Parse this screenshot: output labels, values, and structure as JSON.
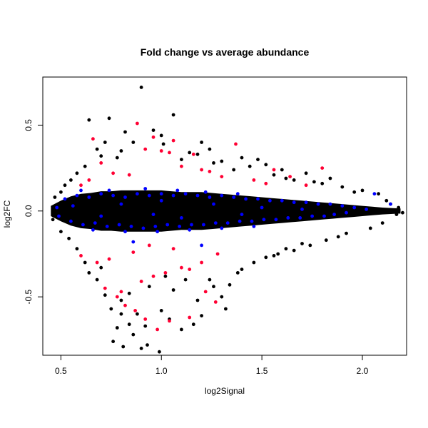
{
  "chart_data": {
    "type": "scatter",
    "title": "Fold change vs average abundance",
    "xlabel": "log2Signal",
    "ylabel": "log2FC",
    "xlim": [
      0.41,
      2.22
    ],
    "ylim": [
      -0.84,
      0.78
    ],
    "xticks": [
      0.5,
      1.0,
      1.5,
      2.0
    ],
    "xtick_labels": [
      "0.5",
      "1.0",
      "1.5",
      "2.0"
    ],
    "yticks": [
      -0.5,
      0.0,
      0.5
    ],
    "ytick_labels": [
      "-0.5",
      "0.0",
      "0.5"
    ],
    "grid": false,
    "legend": "none",
    "colors": {
      "background": "#000000",
      "black": "#000000",
      "blue": "#0000ff",
      "red": "#ff0033"
    },
    "bulk": [
      [
        0.45,
        0.03
      ],
      [
        0.5,
        0.06
      ],
      [
        0.55,
        0.085
      ],
      [
        0.6,
        0.1
      ],
      [
        0.65,
        0.105
      ],
      [
        0.7,
        0.115
      ],
      [
        0.75,
        0.115
      ],
      [
        0.8,
        0.12
      ],
      [
        0.85,
        0.12
      ],
      [
        0.9,
        0.12
      ],
      [
        0.95,
        0.12
      ],
      [
        1.0,
        0.12
      ],
      [
        1.05,
        0.115
      ],
      [
        1.1,
        0.11
      ],
      [
        1.15,
        0.11
      ],
      [
        1.2,
        0.11
      ],
      [
        1.25,
        0.105
      ],
      [
        1.3,
        0.1
      ],
      [
        1.35,
        0.095
      ],
      [
        1.4,
        0.09
      ],
      [
        1.45,
        0.085
      ],
      [
        1.5,
        0.08
      ],
      [
        1.55,
        0.075
      ],
      [
        1.6,
        0.07
      ],
      [
        1.65,
        0.065
      ],
      [
        1.7,
        0.06
      ],
      [
        1.75,
        0.055
      ],
      [
        1.8,
        0.05
      ],
      [
        1.85,
        0.045
      ],
      [
        1.9,
        0.04
      ],
      [
        1.95,
        0.035
      ],
      [
        2.0,
        0.03
      ],
      [
        2.05,
        0.025
      ],
      [
        2.1,
        0.02
      ],
      [
        2.15,
        0.017
      ],
      [
        2.19,
        0.015
      ]
    ],
    "series": [
      {
        "color": "black",
        "points": [
          [
            0.9,
            0.72
          ],
          [
            0.74,
            0.54
          ],
          [
            1.06,
            0.56
          ],
          [
            0.64,
            0.53
          ],
          [
            0.82,
            0.46
          ],
          [
            0.96,
            0.47
          ],
          [
            0.86,
            0.4
          ],
          [
            1.01,
            0.39
          ],
          [
            1.24,
            0.36
          ],
          [
            1.18,
            0.33
          ],
          [
            1.4,
            0.31
          ],
          [
            1.52,
            0.27
          ],
          [
            1.6,
            0.24
          ],
          [
            1.72,
            0.22
          ],
          [
            1.44,
            0.26
          ],
          [
            1.3,
            0.29
          ],
          [
            0.68,
            0.36
          ],
          [
            0.72,
            0.4
          ],
          [
            0.58,
            0.22
          ],
          [
            0.62,
            0.26
          ],
          [
            0.78,
            0.31
          ],
          [
            1.1,
            0.3
          ],
          [
            1.36,
            0.24
          ],
          [
            1.56,
            0.21
          ],
          [
            1.66,
            0.18
          ],
          [
            1.8,
            0.16
          ],
          [
            1.9,
            0.14
          ],
          [
            2.0,
            0.12
          ],
          [
            2.08,
            0.1
          ],
          [
            0.52,
            0.15
          ],
          [
            0.5,
            0.11
          ],
          [
            0.47,
            0.08
          ],
          [
            0.55,
            0.18
          ],
          [
            1.84,
            0.19
          ],
          [
            1.48,
            0.3
          ],
          [
            1.2,
            0.4
          ],
          [
            1.0,
            0.44
          ],
          [
            0.7,
            0.32
          ],
          [
            0.8,
            0.35
          ],
          [
            1.14,
            0.34
          ],
          [
            1.26,
            0.28
          ],
          [
            1.62,
            0.19
          ],
          [
            1.76,
            0.17
          ],
          [
            1.96,
            0.11
          ],
          [
            2.12,
            0.06
          ],
          [
            2.18,
            0.02
          ],
          [
            2.17,
            -0.02
          ],
          [
            2.14,
            0.04
          ],
          [
            0.76,
            -0.76
          ],
          [
            0.81,
            -0.79
          ],
          [
            0.9,
            -0.8
          ],
          [
            0.93,
            -0.78
          ],
          [
            0.99,
            -0.82
          ],
          [
            0.86,
            -0.72
          ],
          [
            0.84,
            -0.66
          ],
          [
            0.78,
            -0.68
          ],
          [
            0.92,
            -0.67
          ],
          [
            0.88,
            -0.6
          ],
          [
            1.04,
            -0.63
          ],
          [
            1.1,
            -0.69
          ],
          [
            1.16,
            -0.66
          ],
          [
            1.2,
            -0.61
          ],
          [
            1.32,
            -0.57
          ],
          [
            1.3,
            -0.5
          ],
          [
            1.26,
            -0.44
          ],
          [
            1.34,
            -0.43
          ],
          [
            1.24,
            -0.4
          ],
          [
            1.0,
            -0.58
          ],
          [
            0.8,
            -0.6
          ],
          [
            0.75,
            -0.57
          ],
          [
            0.72,
            -0.49
          ],
          [
            0.8,
            -0.52
          ],
          [
            0.68,
            -0.4
          ],
          [
            0.64,
            -0.36
          ],
          [
            0.7,
            -0.33
          ],
          [
            1.46,
            -0.3
          ],
          [
            1.56,
            -0.26
          ],
          [
            1.62,
            -0.22
          ],
          [
            1.7,
            -0.19
          ],
          [
            1.82,
            -0.17
          ],
          [
            1.92,
            -0.13
          ],
          [
            2.04,
            -0.1
          ],
          [
            2.1,
            -0.07
          ],
          [
            0.58,
            -0.22
          ],
          [
            0.54,
            -0.16
          ],
          [
            0.5,
            -0.12
          ],
          [
            0.46,
            -0.05
          ],
          [
            1.06,
            -0.46
          ],
          [
            1.12,
            -0.4
          ],
          [
            1.02,
            -0.38
          ],
          [
            0.94,
            -0.44
          ],
          [
            1.38,
            -0.36
          ],
          [
            1.52,
            -0.27
          ],
          [
            1.74,
            -0.2
          ],
          [
            1.88,
            -0.15
          ],
          [
            2.2,
            -0.01
          ],
          [
            0.62,
            -0.3
          ],
          [
            0.84,
            -0.48
          ],
          [
            1.18,
            -0.52
          ],
          [
            1.4,
            -0.34
          ],
          [
            1.58,
            -0.25
          ],
          [
            1.66,
            -0.23
          ]
        ]
      },
      {
        "color": "blue",
        "points": [
          [
            0.52,
            0.07
          ],
          [
            0.58,
            0.09
          ],
          [
            0.64,
            0.08
          ],
          [
            0.7,
            0.1
          ],
          [
            0.76,
            0.09
          ],
          [
            0.82,
            0.08
          ],
          [
            0.88,
            0.1
          ],
          [
            0.94,
            0.09
          ],
          [
            1.0,
            0.1
          ],
          [
            1.06,
            0.09
          ],
          [
            1.12,
            0.1
          ],
          [
            1.18,
            0.09
          ],
          [
            1.24,
            0.08
          ],
          [
            1.3,
            0.09
          ],
          [
            1.36,
            0.08
          ],
          [
            1.42,
            0.07
          ],
          [
            1.48,
            0.07
          ],
          [
            1.54,
            0.06
          ],
          [
            1.6,
            0.06
          ],
          [
            1.66,
            0.05
          ],
          [
            1.72,
            0.05
          ],
          [
            1.78,
            0.04
          ],
          [
            1.84,
            0.04
          ],
          [
            1.9,
            0.03
          ],
          [
            0.55,
            -0.06
          ],
          [
            0.61,
            -0.08
          ],
          [
            0.67,
            -0.07
          ],
          [
            0.73,
            -0.09
          ],
          [
            0.79,
            -0.08
          ],
          [
            0.85,
            -0.09
          ],
          [
            0.91,
            -0.1
          ],
          [
            0.97,
            -0.09
          ],
          [
            1.03,
            -0.08
          ],
          [
            1.09,
            -0.09
          ],
          [
            1.15,
            -0.08
          ],
          [
            1.21,
            -0.08
          ],
          [
            1.27,
            -0.07
          ],
          [
            1.33,
            -0.07
          ],
          [
            1.39,
            -0.06
          ],
          [
            1.45,
            -0.06
          ],
          [
            1.51,
            -0.05
          ],
          [
            1.57,
            -0.05
          ],
          [
            1.63,
            -0.04
          ],
          [
            1.69,
            -0.04
          ],
          [
            1.75,
            -0.03
          ],
          [
            1.81,
            -0.03
          ],
          [
            0.48,
            0.02
          ],
          [
            0.49,
            -0.03
          ],
          [
            0.6,
            0.12
          ],
          [
            0.74,
            0.12
          ],
          [
            0.92,
            0.13
          ],
          [
            1.08,
            0.12
          ],
          [
            1.22,
            0.11
          ],
          [
            1.38,
            0.1
          ],
          [
            0.66,
            -0.11
          ],
          [
            0.82,
            -0.12
          ],
          [
            0.98,
            -0.12
          ],
          [
            1.14,
            -0.11
          ],
          [
            1.3,
            -0.1
          ],
          [
            1.46,
            -0.09
          ],
          [
            1.96,
            0.02
          ],
          [
            2.02,
            0.01
          ],
          [
            2.06,
            0.1
          ],
          [
            2.14,
            0.04
          ],
          [
            1.86,
            -0.02
          ],
          [
            1.92,
            -0.01
          ],
          [
            1.2,
            -0.2
          ],
          [
            0.86,
            -0.18
          ],
          [
            1.0,
            0.06
          ],
          [
            0.8,
            0.04
          ],
          [
            1.26,
            0.04
          ],
          [
            1.5,
            0.02
          ],
          [
            0.7,
            -0.03
          ],
          [
            1.1,
            -0.04
          ],
          [
            1.4,
            -0.02
          ],
          [
            1.7,
            0.01
          ],
          [
            0.56,
            0.03
          ],
          [
            0.96,
            -0.02
          ]
        ]
      },
      {
        "color": "red",
        "points": [
          [
            0.88,
            0.51
          ],
          [
            0.66,
            0.42
          ],
          [
            0.96,
            0.43
          ],
          [
            1.06,
            0.41
          ],
          [
            1.37,
            0.39
          ],
          [
            0.92,
            0.36
          ],
          [
            1.0,
            0.35
          ],
          [
            1.04,
            0.34
          ],
          [
            1.16,
            0.33
          ],
          [
            1.8,
            0.25
          ],
          [
            1.56,
            0.24
          ],
          [
            1.64,
            0.2
          ],
          [
            1.72,
            0.15
          ],
          [
            0.7,
            0.28
          ],
          [
            0.76,
            0.22
          ],
          [
            0.84,
            0.21
          ],
          [
            1.2,
            0.24
          ],
          [
            1.3,
            0.2
          ],
          [
            0.64,
            0.18
          ],
          [
            0.6,
            0.15
          ],
          [
            1.1,
            0.26
          ],
          [
            1.24,
            0.23
          ],
          [
            1.46,
            0.18
          ],
          [
            1.52,
            0.16
          ],
          [
            0.72,
            -0.45
          ],
          [
            0.8,
            -0.47
          ],
          [
            0.92,
            -0.63
          ],
          [
            0.98,
            -0.69
          ],
          [
            1.04,
            -0.64
          ],
          [
            1.14,
            -0.62
          ],
          [
            1.27,
            -0.53
          ],
          [
            1.22,
            -0.47
          ],
          [
            0.87,
            -0.58
          ],
          [
            0.82,
            -0.55
          ],
          [
            0.78,
            -0.5
          ],
          [
            0.9,
            -0.41
          ],
          [
            0.96,
            -0.38
          ],
          [
            1.02,
            -0.36
          ],
          [
            1.1,
            -0.33
          ],
          [
            1.14,
            -0.34
          ],
          [
            0.68,
            -0.3
          ],
          [
            0.74,
            -0.28
          ],
          [
            0.6,
            -0.26
          ],
          [
            1.2,
            -0.3
          ],
          [
            1.28,
            -0.25
          ],
          [
            0.86,
            -0.24
          ],
          [
            0.94,
            -0.2
          ],
          [
            1.06,
            -0.22
          ]
        ]
      }
    ]
  }
}
